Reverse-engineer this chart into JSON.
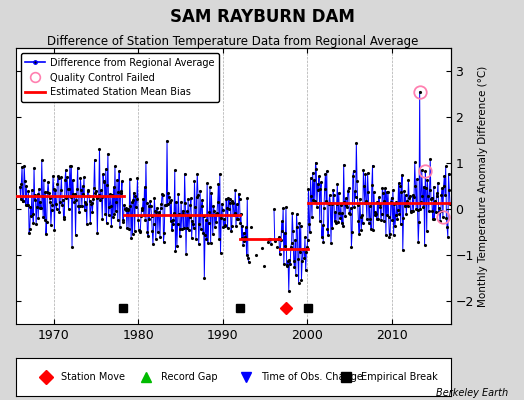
{
  "title": "SAM RAYBURN DAM",
  "subtitle": "Difference of Station Temperature Data from Regional Average",
  "ylabel": "Monthly Temperature Anomaly Difference (°C)",
  "background_color": "#d8d8d8",
  "plot_bg_color": "#ffffff",
  "ylim": [
    -2.5,
    3.5
  ],
  "xlim": [
    1965.5,
    2017.0
  ],
  "yticks": [
    -2,
    -1,
    0,
    1,
    2,
    3
  ],
  "xticks": [
    1970,
    1980,
    1990,
    2000,
    2010
  ],
  "segments": [
    {
      "start": 1965.5,
      "end": 1978.3,
      "bias": 0.28
    },
    {
      "start": 1978.3,
      "end": 1992.0,
      "bias": -0.13
    },
    {
      "start": 1992.0,
      "end": 1996.8,
      "bias": -0.65
    },
    {
      "start": 1996.8,
      "end": 2000.1,
      "bias": -0.88
    },
    {
      "start": 2000.1,
      "end": 2017.0,
      "bias": 0.14
    }
  ],
  "empirical_breaks": [
    1978.2,
    1992.0,
    2000.1
  ],
  "station_move": [
    1997.5
  ],
  "quality_control_failed_times": [
    2013.3,
    2014.0,
    2016.1
  ],
  "quality_control_failed_values": [
    2.55,
    0.82,
    -0.18
  ],
  "random_seed": 42,
  "grid_color": "#aaaaaa",
  "grid_linestyle": "--",
  "grid_linewidth": 0.5,
  "line_color": "blue",
  "dot_color": "black",
  "bias_color": "red",
  "bias_linewidth": 2.0,
  "qc_circle_color": "#ff80b0",
  "break_marker_y": -2.15,
  "bottom_legend_items": [
    {
      "marker": "D",
      "color": "red",
      "label": "Station Move"
    },
    {
      "marker": "^",
      "color": "#00bb00",
      "label": "Record Gap"
    },
    {
      "marker": "v",
      "color": "blue",
      "label": "Time of Obs. Change"
    },
    {
      "marker": "s",
      "color": "black",
      "label": "Empirical Break"
    }
  ]
}
